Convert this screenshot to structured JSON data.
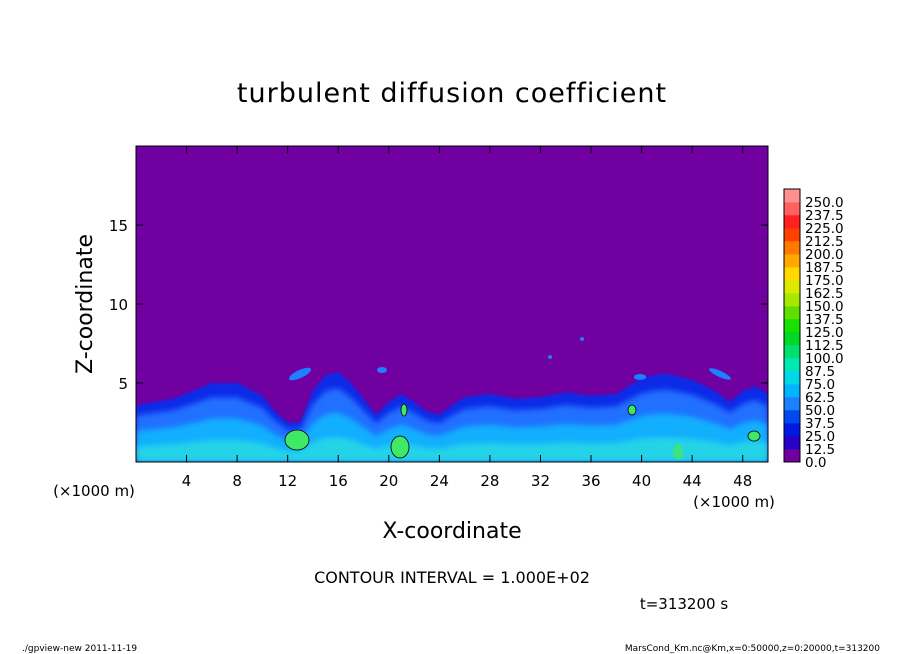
{
  "chart_data": {
    "type": "heatmap",
    "title": "turbulent diffusion coefficient",
    "xlabel": "X-coordinate",
    "ylabel": "Z-coordinate",
    "x_unit": "(×1000 m)",
    "y_unit": "(×1000 m)",
    "xlim": [
      0,
      50
    ],
    "ylim": [
      0,
      20
    ],
    "x_ticks": [
      4,
      8,
      12,
      16,
      20,
      24,
      28,
      32,
      36,
      40,
      44,
      48
    ],
    "y_ticks": [
      5,
      10,
      15
    ],
    "colorbar_levels": [
      "0.0",
      "12.5",
      "25.0",
      "37.5",
      "50.0",
      "62.5",
      "75.0",
      "87.5",
      "100.0",
      "112.5",
      "125.0",
      "137.5",
      "150.0",
      "162.5",
      "175.0",
      "187.5",
      "200.0",
      "212.5",
      "225.0",
      "237.5",
      "250.0"
    ],
    "colorbar_colors": [
      "#7000a0",
      "#2800c8",
      "#0018e0",
      "#0048f0",
      "#1c80ff",
      "#00b4ff",
      "#00d8e8",
      "#00e8b4",
      "#00e070",
      "#00d828",
      "#18e000",
      "#60e000",
      "#a8e800",
      "#dce800",
      "#ffd800",
      "#ffa800",
      "#ff7800",
      "#ff4000",
      "#ff2020",
      "#ff6060",
      "#ff9090"
    ],
    "contour_interval_text": "CONTOUR INTERVAL = 1.000E+02",
    "time_text": "t=313200 s",
    "boundary_layer_top_profile": {
      "x": [
        0,
        3,
        6,
        8,
        10,
        11,
        12,
        13,
        14,
        15,
        16,
        17,
        18,
        19,
        20,
        21,
        22,
        23,
        24,
        25,
        26,
        28,
        30,
        32,
        34,
        36,
        38,
        39,
        40,
        41,
        42,
        43,
        44,
        45,
        46,
        47,
        48,
        49,
        50
      ],
      "z": [
        3.6,
        4.0,
        5.0,
        5.0,
        4.2,
        3.2,
        2.5,
        2.5,
        4.5,
        5.5,
        5.7,
        5.0,
        4.0,
        3.0,
        3.8,
        4.3,
        3.8,
        3.2,
        3.0,
        3.6,
        4.1,
        4.3,
        4.0,
        4.1,
        4.4,
        4.2,
        4.3,
        4.8,
        5.3,
        5.5,
        5.6,
        5.4,
        5.2,
        4.8,
        4.4,
        3.8,
        4.5,
        4.8,
        4.3
      ]
    }
  },
  "footer": {
    "left": "./gpview-new   2011-11-19",
    "right": "MarsCond_Km.nc@Km,x=0:50000,z=0:20000,t=313200"
  }
}
